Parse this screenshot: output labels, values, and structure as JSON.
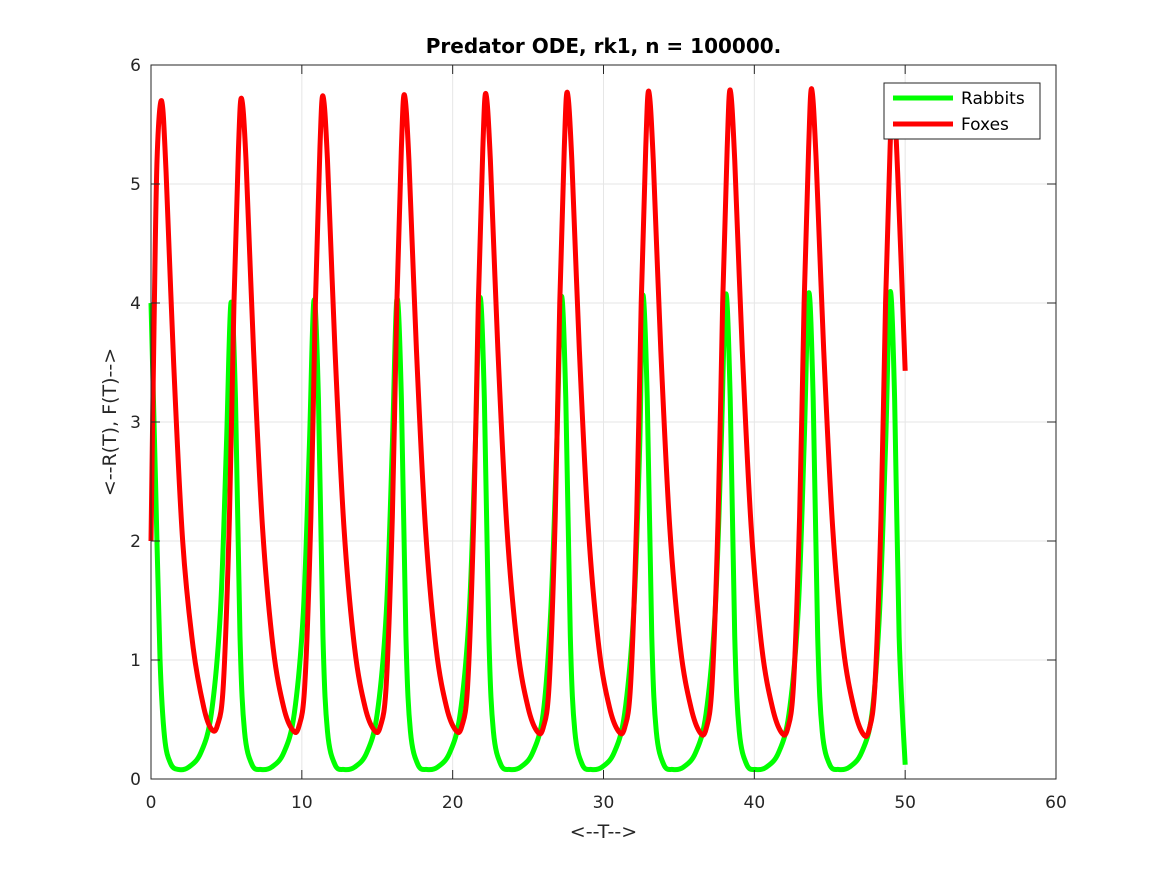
{
  "chart_data": {
    "type": "line",
    "title": "Predator ODE, rk1, n = 100000.",
    "xlabel": "<--T-->",
    "ylabel": "<--R(T), F(T)-->",
    "xlim": [
      0,
      60
    ],
    "ylim": [
      0,
      6
    ],
    "xticks": [
      "0",
      "10",
      "20",
      "30",
      "40",
      "50",
      "60"
    ],
    "yticks": [
      "0",
      "1",
      "2",
      "3",
      "4",
      "5",
      "6"
    ],
    "grid": true,
    "legend_position": "top-right",
    "series": [
      {
        "name": "Rabbits",
        "color": "#00ff00",
        "x": [
          0,
          0.3,
          0.6,
          0.9,
          1.3,
          1.8,
          2.5,
          3.3,
          4.0,
          4.6,
          5.0,
          5.3,
          5.6,
          5.9,
          6.2,
          6.7,
          7.3,
          8.0,
          8.8,
          9.5,
          10.1,
          10.5,
          10.8,
          11.1,
          11.4,
          11.7,
          12.2,
          12.8,
          13.5,
          14.3,
          15.0,
          15.6,
          16.0,
          16.3,
          16.6,
          16.9,
          17.2,
          17.7,
          18.3,
          19.0,
          19.8,
          20.5,
          21.1,
          21.5,
          21.8,
          22.1,
          22.4,
          22.7,
          23.2,
          23.8,
          24.5,
          25.3,
          26.0,
          26.5,
          26.9,
          27.2,
          27.5,
          27.8,
          28.1,
          28.6,
          29.2,
          29.9,
          30.7,
          31.4,
          32.0,
          32.4,
          32.6,
          32.9,
          33.2,
          33.5,
          34.0,
          34.6,
          35.3,
          36.1,
          36.8,
          37.4,
          37.8,
          38.1,
          38.4,
          38.7,
          39.0,
          39.5,
          40.1,
          40.8,
          41.6,
          42.3,
          42.9,
          43.3,
          43.6,
          43.9,
          44.2,
          44.5,
          45.0,
          45.6,
          46.3,
          47.1,
          47.8,
          48.3,
          48.7,
          49.0,
          49.3,
          49.6,
          50.0
        ],
        "y": [
          4.0,
          2.5,
          1.0,
          0.35,
          0.13,
          0.08,
          0.1,
          0.22,
          0.55,
          1.4,
          2.8,
          4.0,
          3.2,
          1.2,
          0.4,
          0.12,
          0.08,
          0.1,
          0.22,
          0.55,
          1.4,
          2.8,
          4.02,
          3.2,
          1.2,
          0.4,
          0.12,
          0.08,
          0.1,
          0.22,
          0.55,
          1.4,
          2.8,
          4.03,
          3.2,
          1.2,
          0.4,
          0.12,
          0.08,
          0.1,
          0.22,
          0.55,
          1.4,
          2.8,
          4.04,
          3.2,
          1.2,
          0.4,
          0.12,
          0.08,
          0.1,
          0.22,
          0.55,
          1.4,
          2.8,
          4.05,
          3.2,
          1.2,
          0.4,
          0.12,
          0.08,
          0.1,
          0.22,
          0.55,
          1.4,
          2.8,
          4.06,
          3.2,
          1.2,
          0.4,
          0.12,
          0.08,
          0.1,
          0.22,
          0.55,
          1.4,
          2.8,
          4.07,
          3.2,
          1.2,
          0.4,
          0.12,
          0.08,
          0.1,
          0.22,
          0.55,
          1.4,
          2.8,
          4.08,
          3.2,
          1.2,
          0.4,
          0.12,
          0.08,
          0.1,
          0.22,
          0.55,
          1.4,
          2.8,
          4.09,
          3.2,
          1.2,
          0.12
        ]
      },
      {
        "name": "Foxes",
        "color": "#ff0000",
        "x": [
          0,
          0.2,
          0.4,
          0.7,
          1.0,
          1.5,
          2.1,
          2.8,
          3.5,
          4.0,
          4.4,
          4.8,
          5.2,
          5.5,
          5.8,
          6.0,
          6.3,
          6.8,
          7.4,
          8.1,
          8.8,
          9.4,
          9.8,
          10.2,
          10.6,
          10.9,
          11.2,
          11.4,
          11.7,
          12.2,
          12.8,
          13.5,
          14.2,
          14.8,
          15.2,
          15.6,
          16.0,
          16.3,
          16.6,
          16.8,
          17.1,
          17.6,
          18.2,
          18.9,
          19.6,
          20.2,
          20.6,
          21.0,
          21.4,
          21.7,
          22.0,
          22.2,
          22.5,
          23.0,
          23.6,
          24.3,
          25.0,
          25.6,
          26.0,
          26.4,
          26.8,
          27.1,
          27.4,
          27.6,
          27.9,
          28.4,
          29.0,
          29.7,
          30.4,
          31.0,
          31.4,
          31.8,
          32.2,
          32.5,
          32.8,
          33.0,
          33.3,
          33.8,
          34.4,
          35.1,
          35.8,
          36.4,
          36.8,
          37.2,
          37.6,
          37.9,
          38.2,
          38.4,
          38.7,
          39.2,
          39.8,
          40.5,
          41.2,
          41.8,
          42.2,
          42.6,
          43.0,
          43.3,
          43.6,
          43.8,
          44.1,
          44.6,
          45.2,
          45.9,
          46.6,
          47.2,
          47.6,
          48.0,
          48.4,
          48.7,
          49.0,
          49.2,
          49.5,
          50.0
        ],
        "y": [
          2.0,
          3.8,
          5.2,
          5.7,
          5.1,
          3.5,
          2.0,
          1.1,
          0.6,
          0.42,
          0.45,
          0.8,
          2.2,
          4.0,
          5.3,
          5.72,
          5.2,
          3.6,
          2.1,
          1.1,
          0.6,
          0.41,
          0.44,
          0.8,
          2.2,
          4.0,
          5.3,
          5.74,
          5.2,
          3.6,
          2.1,
          1.1,
          0.6,
          0.41,
          0.44,
          0.8,
          2.2,
          4.0,
          5.3,
          5.75,
          5.2,
          3.6,
          2.1,
          1.1,
          0.6,
          0.41,
          0.44,
          0.8,
          2.2,
          4.0,
          5.3,
          5.76,
          5.2,
          3.6,
          2.1,
          1.1,
          0.6,
          0.4,
          0.43,
          0.8,
          2.2,
          4.0,
          5.3,
          5.77,
          5.2,
          3.6,
          2.1,
          1.1,
          0.6,
          0.4,
          0.43,
          0.8,
          2.2,
          4.0,
          5.3,
          5.78,
          5.2,
          3.6,
          2.1,
          1.1,
          0.6,
          0.39,
          0.42,
          0.8,
          2.2,
          4.0,
          5.3,
          5.79,
          5.2,
          3.6,
          2.1,
          1.1,
          0.6,
          0.39,
          0.42,
          0.8,
          2.2,
          4.0,
          5.3,
          5.8,
          5.2,
          3.6,
          2.1,
          1.1,
          0.6,
          0.38,
          0.41,
          0.8,
          2.2,
          4.0,
          5.3,
          5.81,
          5.1,
          3.43
        ]
      }
    ]
  }
}
